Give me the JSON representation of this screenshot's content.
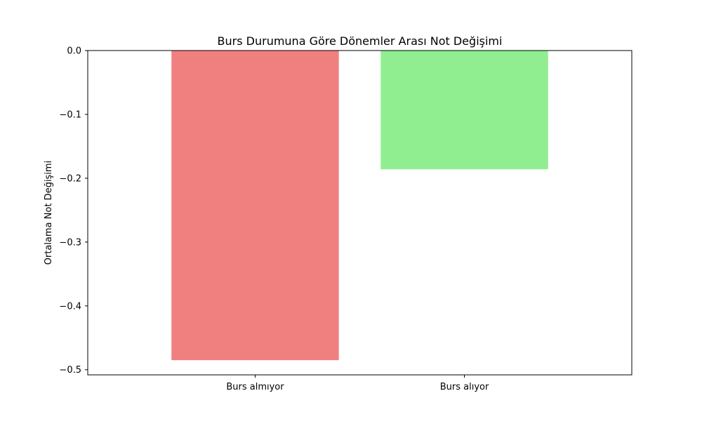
{
  "chart_data": {
    "type": "bar",
    "title": "Burs Durumuna Göre Dönemler Arası Not Değişimi",
    "xlabel": "",
    "ylabel": "Ortalama Not Değişimi",
    "categories": [
      "Burs almıyor",
      "Burs alıyor"
    ],
    "values": [
      -0.485,
      -0.186
    ],
    "colors": [
      "#f08080",
      "#90ee90"
    ],
    "ylim": [
      -0.508,
      0.0
    ],
    "yticks": [
      0.0,
      -0.1,
      -0.2,
      -0.3,
      -0.4,
      -0.5
    ],
    "ytick_labels": [
      "0.0",
      "−0.1",
      "−0.2",
      "−0.3",
      "−0.4",
      "−0.5"
    ],
    "grid": false,
    "legend": "none"
  }
}
